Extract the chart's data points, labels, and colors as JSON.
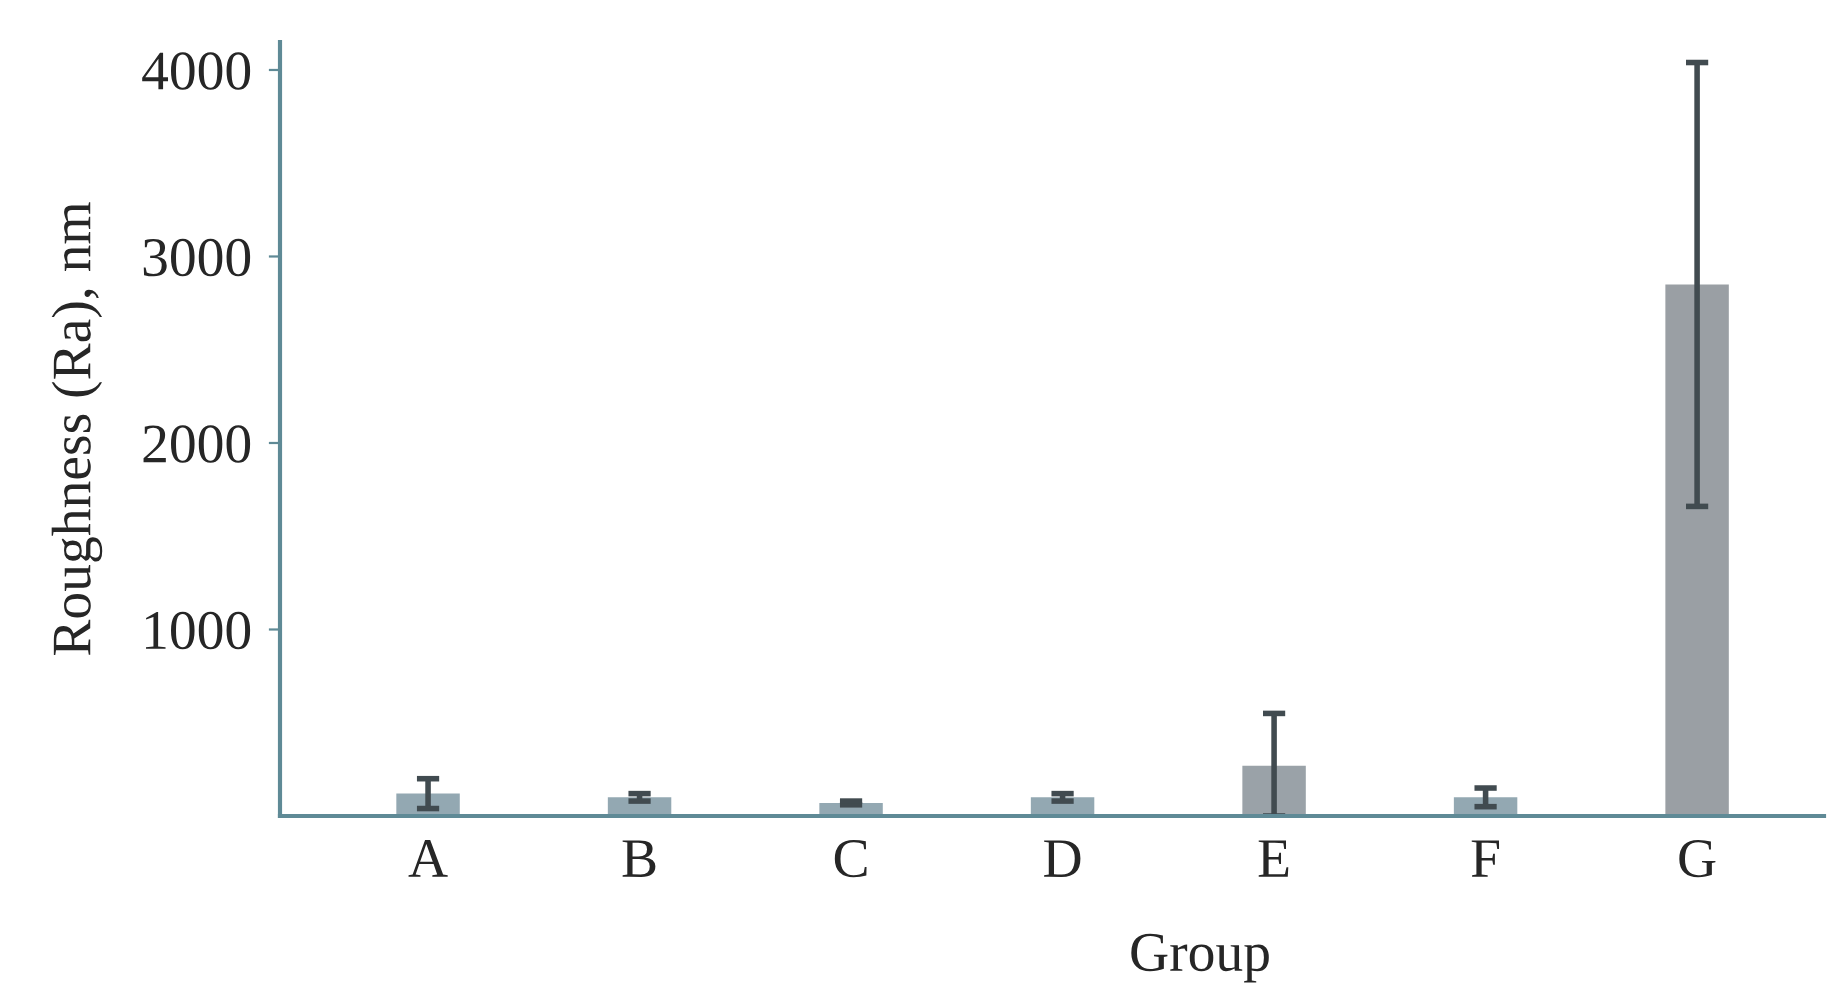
{
  "chart_data": {
    "type": "bar",
    "xlabel": "Group",
    "ylabel": "Roughness (Ra), nm",
    "categories": [
      "A",
      "B",
      "C",
      "D",
      "E",
      "F",
      "G"
    ],
    "values": [
      120,
      100,
      70,
      100,
      270,
      100,
      2850
    ],
    "errors": [
      80,
      20,
      10,
      20,
      [
        270,
        280
      ],
      50,
      1190
    ],
    "colors": [
      "#93a8b2",
      "#93a8b2",
      "#93a8b2",
      "#93a8b2",
      "#9aa2a8",
      "#93a8b2",
      "#9a9fa4"
    ],
    "ylim": [
      0,
      4150
    ],
    "yticks": [
      1000,
      2000,
      3000,
      4000
    ],
    "grid": false
  }
}
